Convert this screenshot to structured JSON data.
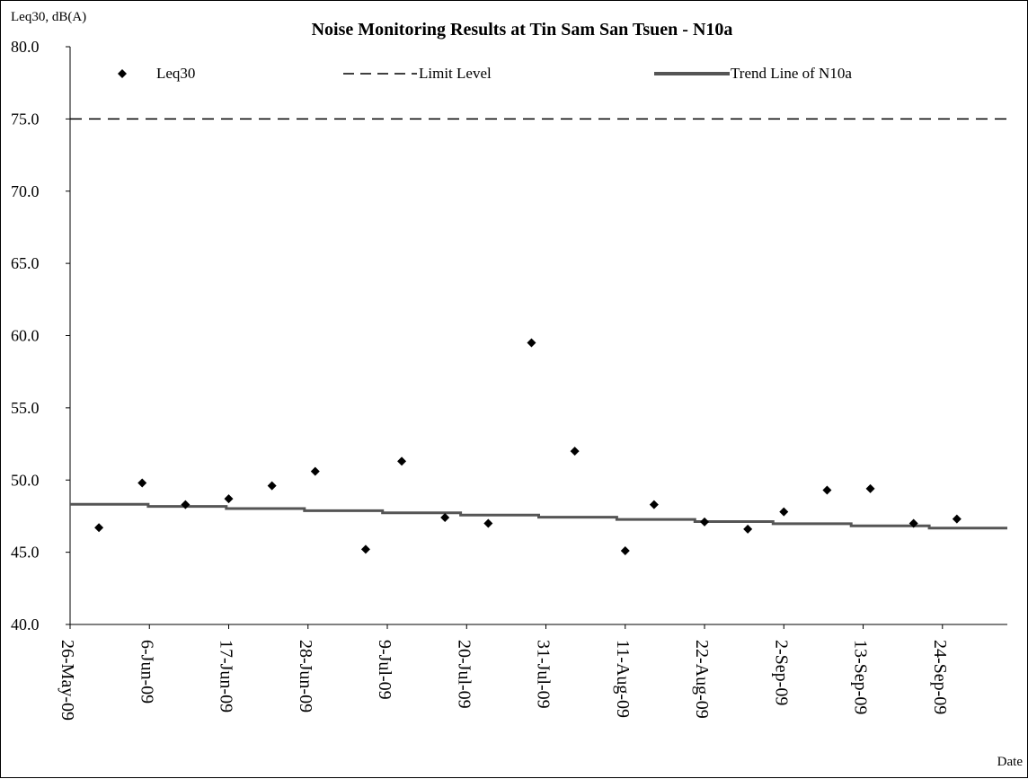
{
  "chart_data": {
    "type": "scatter",
    "title": "Noise Monitoring Results at Tin Sam San Tsuen - N10a",
    "ylabel": "Leq30, dB(A)",
    "xlabel": "Date",
    "ylim": [
      40,
      80
    ],
    "xlim": [
      "2009-05-26",
      "2009-10-03"
    ],
    "y_ticks": [
      "40.0",
      "45.0",
      "50.0",
      "55.0",
      "60.0",
      "65.0",
      "70.0",
      "75.0",
      "80.0"
    ],
    "x_ticks": [
      {
        "date": "2009-05-26",
        "label": "26-May-09"
      },
      {
        "date": "2009-06-06",
        "label": "6-Jun-09"
      },
      {
        "date": "2009-06-17",
        "label": "17-Jun-09"
      },
      {
        "date": "2009-06-28",
        "label": "28-Jun-09"
      },
      {
        "date": "2009-07-09",
        "label": "9-Jul-09"
      },
      {
        "date": "2009-07-20",
        "label": "20-Jul-09"
      },
      {
        "date": "2009-07-31",
        "label": "31-Jul-09"
      },
      {
        "date": "2009-08-11",
        "label": "11-Aug-09"
      },
      {
        "date": "2009-08-22",
        "label": "22-Aug-09"
      },
      {
        "date": "2009-09-02",
        "label": "2-Sep-09"
      },
      {
        "date": "2009-09-13",
        "label": "13-Sep-09"
      },
      {
        "date": "2009-09-24",
        "label": "24-Sep-09"
      }
    ],
    "legend_position": "top",
    "legend": {
      "points": "Leq30",
      "limit": "Limit Level",
      "trend": "Trend Line of N10a"
    },
    "series": [
      {
        "name": "Leq30",
        "kind": "points",
        "color": "#000000",
        "points": [
          {
            "x": "2009-05-30",
            "y": 46.7
          },
          {
            "x": "2009-06-05",
            "y": 49.8
          },
          {
            "x": "2009-06-11",
            "y": 48.3
          },
          {
            "x": "2009-06-17",
            "y": 48.7
          },
          {
            "x": "2009-06-23",
            "y": 49.6
          },
          {
            "x": "2009-06-29",
            "y": 50.6
          },
          {
            "x": "2009-07-06",
            "y": 45.2
          },
          {
            "x": "2009-07-11",
            "y": 51.3
          },
          {
            "x": "2009-07-17",
            "y": 47.4
          },
          {
            "x": "2009-07-23",
            "y": 47.0
          },
          {
            "x": "2009-07-29",
            "y": 59.5
          },
          {
            "x": "2009-08-04",
            "y": 52.0
          },
          {
            "x": "2009-08-11",
            "y": 45.1
          },
          {
            "x": "2009-08-15",
            "y": 48.3
          },
          {
            "x": "2009-08-22",
            "y": 47.1
          },
          {
            "x": "2009-08-28",
            "y": 46.6
          },
          {
            "x": "2009-09-02",
            "y": 47.8
          },
          {
            "x": "2009-09-08",
            "y": 49.3
          },
          {
            "x": "2009-09-14",
            "y": 49.4
          },
          {
            "x": "2009-09-20",
            "y": 47.0
          },
          {
            "x": "2009-09-26",
            "y": 47.3
          }
        ]
      },
      {
        "name": "Limit Level",
        "kind": "limit",
        "color": "#000000",
        "y": 75.0
      },
      {
        "name": "Trend Line of N10a",
        "kind": "trend",
        "color": "#555555",
        "points": [
          {
            "x": "2009-05-26",
            "y": 48.4
          },
          {
            "x": "2009-10-03",
            "y": 46.6
          }
        ]
      }
    ]
  }
}
